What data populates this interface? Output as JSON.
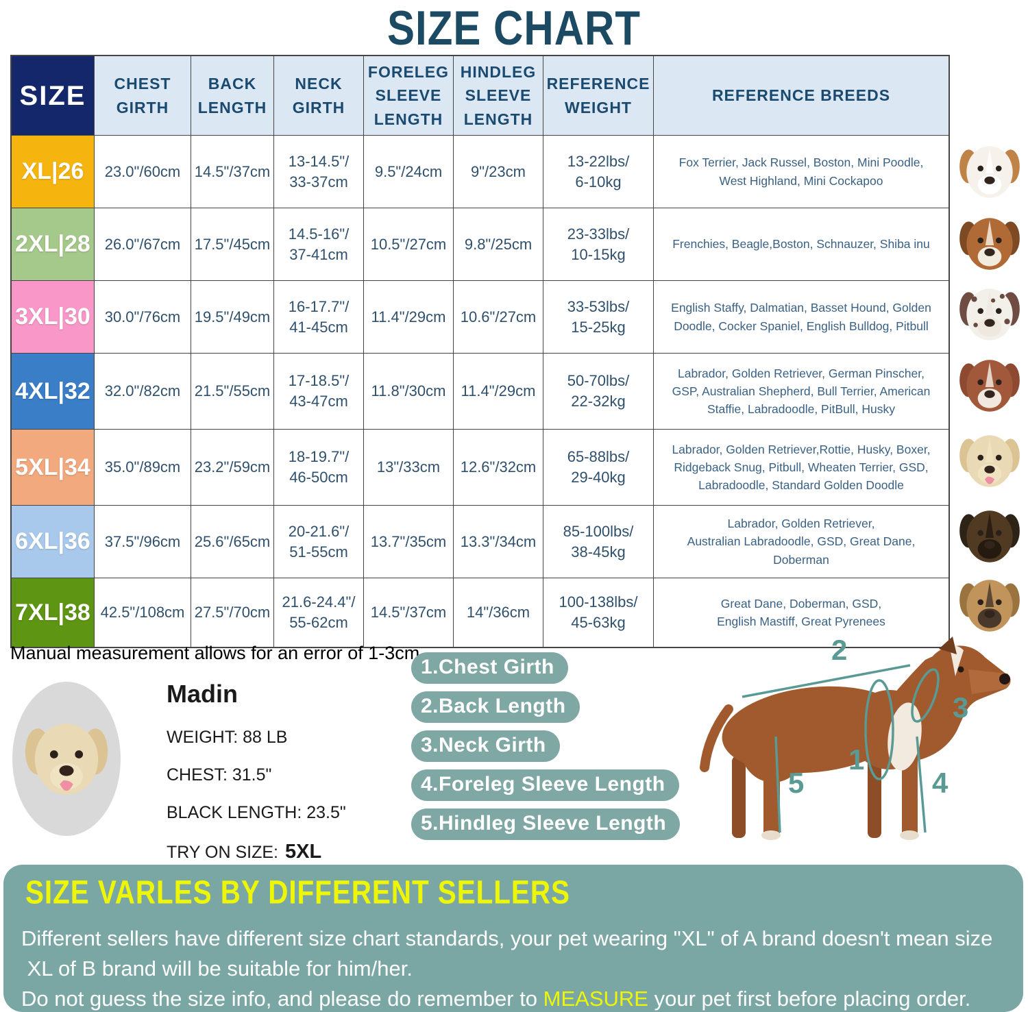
{
  "title": "SIZE CHART",
  "note": "Manual measurement allows for an error of 1-3cm",
  "colors": {
    "title": "#1d4a63",
    "size_header_bg": "#14276b",
    "header_bg": "#dbe7f3",
    "header_text": "#1b4a70",
    "table_text": "#2f506c",
    "pill": "#7fa8a4",
    "panel": "#7aa7a4",
    "highlight_yellow": "#eef607"
  },
  "table": {
    "headers": [
      "SIZE",
      "CHEST\nGIRTH",
      "BACK\nLENGTH",
      "NECK\nGIRTH",
      "FORELEG\nSLEEVE\nLENGTH",
      "HINDLEG\nSLEEVE\nLENGTH",
      "REFERENCE\nWEIGHT",
      "REFERENCE BREEDS"
    ],
    "rows": [
      {
        "size": "XL|26",
        "color": "#f6b40e",
        "chest": "23.0\"/60cm",
        "back": "14.5\"/37cm",
        "neck": "13-14.5\"/\n33-37cm",
        "foreleg": "9.5\"/24cm",
        "hindleg": "9\"/23cm",
        "weight": "13-22lbs/\n6-10kg",
        "breeds": "Fox Terrier, Jack Russel, Boston, Mini Poodle,\nWest Highland, Mini Cockapoo"
      },
      {
        "size": "2XL|28",
        "color": "#a5c98a",
        "chest": "26.0\"/67cm",
        "back": "17.5\"/45cm",
        "neck": "14.5-16\"/\n37-41cm",
        "foreleg": "10.5\"/27cm",
        "hindleg": "9.8\"/25cm",
        "weight": "23-33lbs/\n10-15kg",
        "breeds": "Frenchies, Beagle,Boston, Schnauzer, Shiba inu"
      },
      {
        "size": "3XL|30",
        "color": "#f998c8",
        "chest": "30.0\"/76cm",
        "back": "19.5\"/49cm",
        "neck": "16-17.7\"/\n41-45cm",
        "foreleg": "11.4\"/29cm",
        "hindleg": "10.6\"/27cm",
        "weight": "33-53lbs/\n15-25kg",
        "breeds": "English Staffy, Dalmatian, Basset Hound, Golden\nDoodle, Cocker Spaniel, English Bulldog, Pitbull"
      },
      {
        "size": "4XL|32",
        "color": "#3a7ec8",
        "chest": "32.0\"/82cm",
        "back": "21.5\"/55cm",
        "neck": "17-18.5\"/\n43-47cm",
        "foreleg": "11.8\"/30cm",
        "hindleg": "11.4\"/29cm",
        "weight": "50-70lbs/\n22-32kg",
        "breeds": "Labrador, Golden Retriever, German Pinscher,\nGSP, Australian Shepherd, Bull Terrier, American\nStaffie, Labradoodle, PitBull, Husky"
      },
      {
        "size": "5XL|34",
        "color": "#f2a97e",
        "chest": "35.0\"/89cm",
        "back": "23.2\"/59cm",
        "neck": "18-19.7\"/\n46-50cm",
        "foreleg": "13\"/33cm",
        "hindleg": "12.6\"/32cm",
        "weight": "65-88lbs/\n29-40kg",
        "breeds": "Labrador, Golden Retriever,Rottie, Husky, Boxer,\nRidgeback Snug, Pitbull, Wheaten Terrier, GSD,\nLabradoodle,  Standard Golden Doodle"
      },
      {
        "size": "6XL|36",
        "color": "#a9c9ec",
        "chest": "37.5\"/96cm",
        "back": "25.6\"/65cm",
        "neck": "20-21.6\"/\n51-55cm",
        "foreleg": "13.7\"/35cm",
        "hindleg": "13.3\"/34cm",
        "weight": "85-100lbs/\n38-45kg",
        "breeds": "Labrador, Golden Retriever,\nAustralian Labradoodle, GSD, Great Dane,\nDoberman"
      },
      {
        "size": "7XL|38",
        "color": "#5e9613",
        "chest": "42.5\"/108cm",
        "back": "27.5\"/70cm",
        "neck": "21.6-24.4\"/\n55-62cm",
        "foreleg": "14.5\"/37cm",
        "hindleg": "14\"/36cm",
        "weight": "100-138lbs/\n45-63kg",
        "breeds": "Great Dane, Doberman, GSD,\nEnglish Mastiff, Great Pyrenees"
      }
    ]
  },
  "breed_photos": [
    {
      "id": "jack-russell",
      "head": "#f6f1ea",
      "ear": "#bf8347",
      "muzzle": "#ffffff",
      "features": ""
    },
    {
      "id": "beagle",
      "head": "#b06a35",
      "ear": "#7d4a24",
      "muzzle": "#f3ecde",
      "features": ""
    },
    {
      "id": "dalmatian",
      "head": "#f3efe9",
      "ear": "#6f4b42",
      "muzzle": "#efe8df",
      "features": "spots"
    },
    {
      "id": "amstaff",
      "head": "#a2583a",
      "ear": "#8d4a30",
      "muzzle": "#f1e9e0",
      "features": ""
    },
    {
      "id": "labrador",
      "head": "#ead9b5",
      "ear": "#dcc394",
      "muzzle": "#f0e3c2",
      "features": "tongue"
    },
    {
      "id": "german-shepherd",
      "head": "#503a22",
      "ear": "#2e2317",
      "muzzle": "#241a10",
      "features": ""
    },
    {
      "id": "great-dane",
      "head": "#c1945c",
      "ear": "#9a733f",
      "muzzle": "#4a392a",
      "features": ""
    }
  ],
  "example": {
    "name": "Madin",
    "weight": "WEIGHT: 88 LB",
    "chest": "CHEST: 31.5\"",
    "back": "BLACK LENGTH: 23.5\"",
    "try_on_label": "TRY ON SIZE:",
    "try_on_size": "5XL"
  },
  "measurements": [
    "1.Chest Girth",
    "2.Back Length",
    "3.Neck Girth",
    "4.Foreleg Sleeve Length",
    "5.Hindleg Sleeve Length"
  ],
  "diagram": {
    "labels": [
      "1",
      "2",
      "3",
      "4",
      "5"
    ]
  },
  "footer": {
    "heading": "SIZE VARLES BY DIFFERENT SELLERS",
    "line1": "Different sellers have different size chart standards, your pet wearing \"XL\" of A brand doesn't mean size",
    "line2": " XL of B brand will be suitable for him/her.",
    "line3_before": "Do not guess the size info, and please do remember to ",
    "line3_highlight": "MEASURE",
    "line3_after": " your pet first before placing order."
  }
}
